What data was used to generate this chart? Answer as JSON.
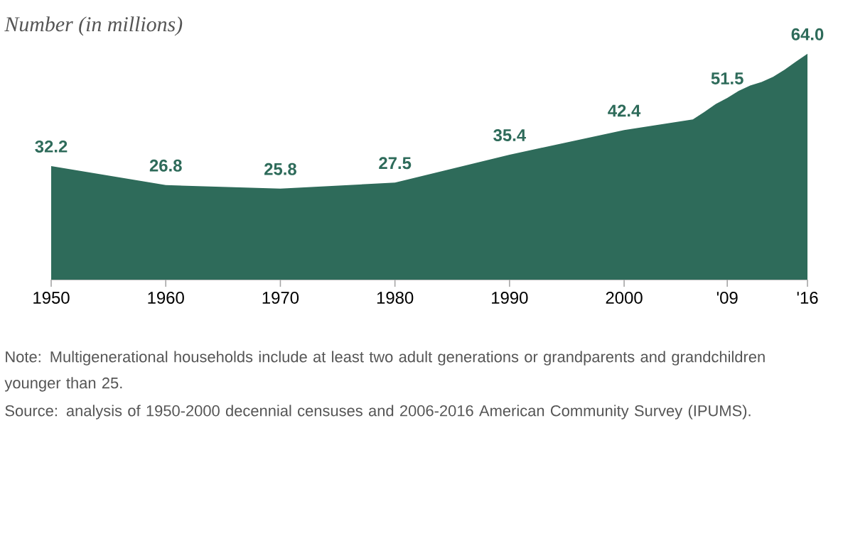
{
  "chart_data": {
    "type": "area",
    "title": "Number (in millions)",
    "x": [
      1950,
      1960,
      1970,
      1980,
      1990,
      2000,
      2006,
      2007,
      2008,
      2009,
      2010,
      2011,
      2012,
      2013,
      2014,
      2015,
      2016
    ],
    "series": [
      {
        "color": "#2e6b5a",
        "values": [
          32.2,
          26.8,
          25.8,
          27.5,
          35.4,
          42.4,
          45.4,
          47.5,
          49.8,
          51.5,
          53.5,
          55.0,
          56.0,
          57.5,
          59.5,
          61.8,
          64.0
        ],
        "value_labels": [
          "32.2",
          "26.8",
          "25.8",
          "27.5",
          "35.4",
          "42.4",
          null,
          null,
          null,
          "51.5",
          null,
          null,
          null,
          null,
          null,
          null,
          "64.0"
        ]
      }
    ],
    "xlim": [
      1950,
      2016
    ],
    "xticks": [
      1950,
      1960,
      1970,
      1980,
      1990,
      2000,
      {
        "value": 2009,
        "label": "'09"
      },
      {
        "value": 2016,
        "label": "'16"
      }
    ],
    "tick_labels": "x",
    "grid": false,
    "annotations": [
      "Note: Multigenerational households include at least two adult generations or grandparents and grandchildren younger than 25.",
      "Source: analysis of 1950-2000 decennial censuses and 2006-2016 American Community Survey (IPUMS)."
    ]
  }
}
